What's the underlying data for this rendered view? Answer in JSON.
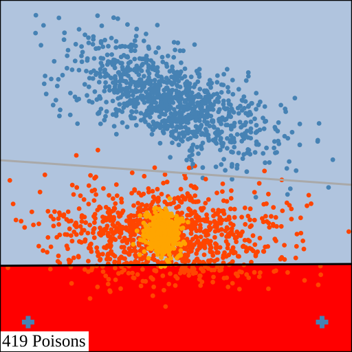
{
  "colors": {
    "background": "#b0c4de",
    "poison_region": "#ff0000",
    "frame": "#000000",
    "blue_points": "#4682b4",
    "orange_points": "#ff4500",
    "poison_points": "#ffa500",
    "reference_line": "#a9a9a9",
    "boundary_line": "#000000"
  },
  "chart_data": {
    "type": "scatter",
    "xlim": [
      -1,
      1
    ],
    "ylim": [
      -1,
      1
    ],
    "grid": false,
    "legend": "none",
    "series": [
      {
        "color": "blue",
        "cluster_center": [
          -0.04,
          0.43
        ],
        "cluster_spread": [
          0.29,
          0.13
        ],
        "tilt": -0.35,
        "count": 1000
      },
      {
        "color": "orange",
        "cluster_center": [
          -0.05,
          -0.34
        ],
        "cluster_spread": [
          0.33,
          0.14
        ],
        "count": 1000
      },
      {
        "color": "poison",
        "cluster_center": [
          -0.07,
          -0.33
        ],
        "cluster_spread": [
          0.05,
          0.06
        ],
        "count": 419
      }
    ],
    "lines": [
      {
        "name": "reference",
        "from": [
          -1,
          0.09
        ],
        "to": [
          1,
          -0.05
        ]
      },
      {
        "name": "boundary",
        "from": [
          -1,
          -0.51
        ],
        "to": [
          1,
          -0.5
        ],
        "region_below": "red"
      }
    ],
    "markers": [
      {
        "shape": "plus",
        "x": -0.84,
        "y": -0.83
      },
      {
        "shape": "plus",
        "x": 0.83,
        "y": -0.83
      }
    ],
    "annotation": "419 Poisons"
  }
}
